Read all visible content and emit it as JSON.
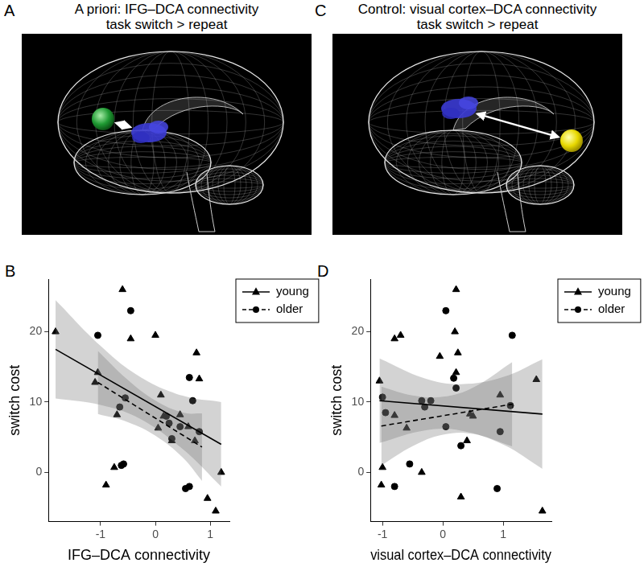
{
  "panels": [
    {
      "label": "A",
      "title": [
        "A priori: IFG–DCA connectivity",
        "task switch > repeat"
      ]
    },
    {
      "label": "C",
      "title": [
        "Control: visual cortex–DCA connectivity",
        "task switch > repeat"
      ]
    }
  ],
  "chart_data": [
    {
      "label": "B",
      "type": "scatter",
      "x_label": "IFG–DCA connectivity",
      "y_label": "switch cost",
      "xlim": [
        -1.95,
        1.35
      ],
      "ylim": [
        -7,
        27.5
      ],
      "xticks": [
        -1,
        0,
        1
      ],
      "yticks": [
        0,
        10,
        20
      ],
      "grid": false,
      "legend": "upper right",
      "series": [
        {
          "name": "young",
          "color": "#000000",
          "marker": "triangle",
          "line_style": "solid",
          "x": [
            -1.82,
            -1.1,
            -1.05,
            -0.9,
            -0.75,
            -0.7,
            -0.6,
            -0.45,
            0.0,
            0.05,
            0.1,
            0.15,
            0.3,
            0.45,
            0.6,
            0.72,
            0.75,
            0.8,
            0.95,
            1.1,
            1.2
          ],
          "values": [
            20,
            12.8,
            14.2,
            -1.8,
            0.7,
            8.2,
            26,
            19,
            19.5,
            6.3,
            11,
            8,
            4.5,
            8.2,
            6.5,
            4.5,
            17,
            13.3,
            -3.7,
            -5.5,
            0
          ],
          "fit": {
            "x": [
              -1.82,
              1.2
            ],
            "y": [
              17.5,
              4.0
            ]
          },
          "ci": {
            "x": [
              -1.82,
              -1.0,
              -0.3,
              0.5,
              1.2
            ],
            "lower": [
              10.5,
              9.6,
              7.7,
              3.3,
              -2.0
            ],
            "upper": [
              24.5,
              18.0,
              13.7,
              10.9,
              10.0
            ]
          }
        },
        {
          "name": "older",
          "color": "#000000",
          "marker": "circle",
          "line_style": "dashed",
          "x": [
            -1.05,
            -0.65,
            -0.62,
            -0.58,
            -0.55,
            -0.45,
            0.2,
            0.25,
            0.3,
            0.45,
            0.55,
            0.62,
            0.62,
            0.68,
            0.8
          ],
          "values": [
            19.5,
            9.3,
            1.0,
            1.2,
            10.6,
            23,
            8,
            7,
            4.8,
            6.5,
            -2.3,
            -2,
            13.5,
            10.2,
            5.8
          ],
          "fit": {
            "x": [
              -1.05,
              0.85
            ],
            "y": [
              12.8,
              3.6
            ]
          },
          "ci": {
            "x": [
              -1.05,
              -0.5,
              0,
              0.5,
              0.85
            ],
            "lower": [
              8.3,
              7.14,
              5.22,
              2.1,
              -1.2
            ],
            "upper": [
              17.3,
              13.14,
              10.22,
              8.5,
              8.4
            ]
          }
        }
      ]
    },
    {
      "label": "D",
      "type": "scatter",
      "x_label": "visual cortex–DCA connectivity",
      "y_label": "switch cost",
      "xlim": [
        -1.2,
        1.8
      ],
      "ylim": [
        -7,
        27.5
      ],
      "xticks": [
        -1,
        0,
        1
      ],
      "yticks": [
        0,
        10,
        20
      ],
      "grid": false,
      "legend": "upper right",
      "series": [
        {
          "name": "young",
          "color": "#000000",
          "marker": "triangle",
          "line_style": "solid",
          "x": [
            -1.05,
            -1.02,
            -1.0,
            -0.8,
            -0.8,
            -0.7,
            -0.6,
            -0.35,
            -0.05,
            0.2,
            0.22,
            0.22,
            0.25,
            0.3,
            0.4,
            0.45,
            0.5,
            0.95,
            1.55,
            1.65
          ],
          "values": [
            13,
            -1.8,
            0.7,
            19,
            8.1,
            19.5,
            6.3,
            0,
            16.5,
            20,
            26,
            14.2,
            17,
            -3.5,
            4.5,
            8.3,
            8,
            11,
            13.2,
            -5.5
          ],
          "fit": {
            "x": [
              -1.05,
              1.65
            ],
            "y": [
              10.2,
              8.3
            ]
          },
          "ci": {
            "x": [
              -1.05,
              -0.3,
              0.3,
              1.0,
              1.65
            ],
            "lower": [
              4.2,
              5.97,
              5.95,
              3.96,
              0.5
            ],
            "upper": [
              16.2,
              13.37,
              12.55,
              13.56,
              16.1
            ]
          }
        },
        {
          "name": "older",
          "color": "#000000",
          "marker": "circle",
          "line_style": "dashed",
          "x": [
            -1.0,
            -0.95,
            -0.8,
            -0.55,
            -0.35,
            -0.3,
            -0.2,
            0.05,
            0.05,
            0.18,
            0.22,
            0.3,
            0.9,
            0.95,
            1.12,
            1.15
          ],
          "values": [
            10.7,
            8.5,
            -2,
            1.2,
            10.2,
            9.3,
            10.2,
            23,
            6.5,
            13.4,
            12,
            3.8,
            -2.3,
            5.8,
            9.5,
            19.5
          ],
          "fit": {
            "x": [
              -1.02,
              1.15
            ],
            "y": [
              6.6,
              9.7
            ]
          },
          "ci": {
            "x": [
              -1.02,
              -0.5,
              0,
              0.5,
              1.15
            ],
            "lower": [
              1.0,
              3.74,
              5.36,
              5.47,
              3.7
            ],
            "upper": [
              12.2,
              10.94,
              10.76,
              12.07,
              15.7
            ]
          }
        }
      ]
    }
  ]
}
